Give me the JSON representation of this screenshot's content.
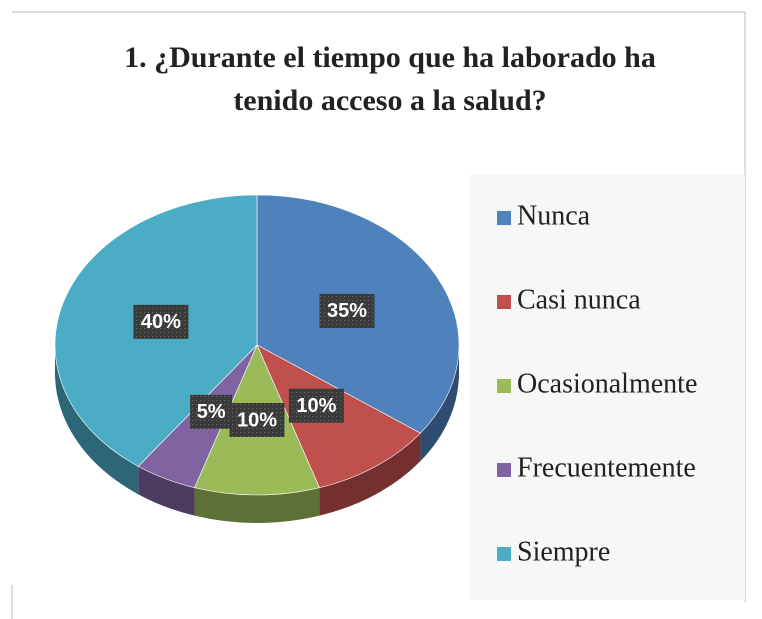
{
  "chart_data": {
    "type": "pie3d",
    "title": "1. ¿Durante el tiempo que ha laborado ha tenido acceso a la salud?",
    "categories": [
      "Nunca",
      "Casi nunca",
      "Ocasionalmente",
      "Frecuentemente",
      "Siempre"
    ],
    "values": [
      35,
      10,
      10,
      5,
      40
    ],
    "value_labels": [
      "35%",
      "10%",
      "10%",
      "5%",
      "40%"
    ],
    "colors": [
      "#4f81bd",
      "#c0504d",
      "#9bbb59",
      "#8064a2",
      "#4bacc6"
    ],
    "legend": "right"
  }
}
